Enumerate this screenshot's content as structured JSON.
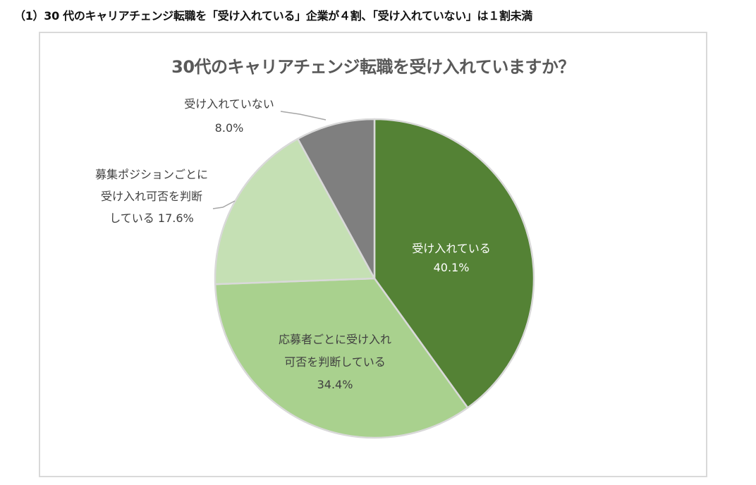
{
  "heading": "（1）30 代のキャリアチェンジ転職を「受け入れている」企業が４割、「受け入れていない」は１割未満",
  "chart_data": {
    "type": "pie",
    "title": "30代のキャリアチェンジ転職を受け入れていますか？",
    "unit": "%",
    "start_angle": "12 o'clock, clockwise",
    "legend": "none (data labels on slices)",
    "slices": [
      {
        "label": "受け入れている",
        "value": 40.1,
        "color": "#548235"
      },
      {
        "label": "応募者ごとに受け入れ可否を判断している",
        "value": 34.4,
        "color": "#a9d18e"
      },
      {
        "label": "募集ポジションごとに受け入れ可否を判断している",
        "value": 17.6,
        "color": "#c5e0b4"
      },
      {
        "label": "受け入れていない",
        "value": 8.0,
        "color": "#7f7f7f"
      }
    ]
  },
  "labels": {
    "accepting": {
      "line1": "受け入れている",
      "line2": "40.1%"
    },
    "per_applicant": {
      "line1": "応募者ごとに受け入れ",
      "line2": "可否を判断している",
      "line3": "34.4%"
    },
    "per_position": {
      "line1": "募集ポジションごとに",
      "line2": "受け入れ可否を判断",
      "line3": "している 17.6%"
    },
    "not_accepting": {
      "line1": "受け入れていない",
      "line2": "8.0%"
    }
  }
}
